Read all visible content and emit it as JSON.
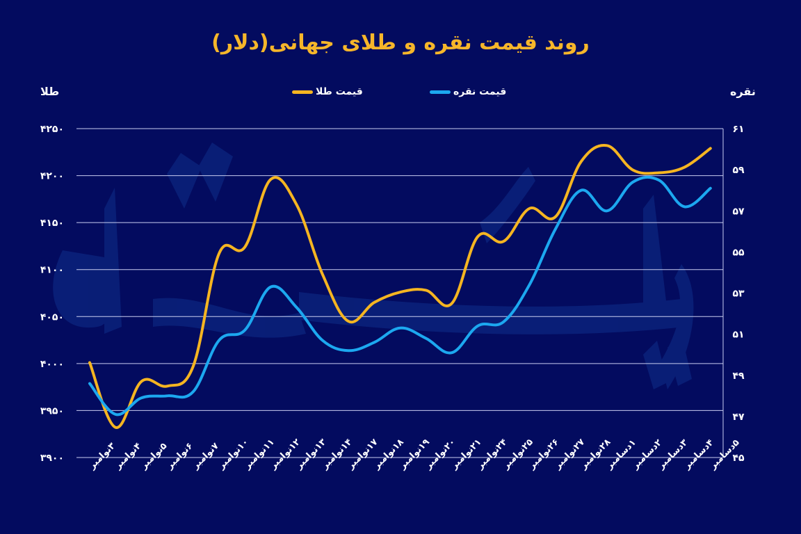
{
  "title": "روند قیمت نقره و طلای جهانی(دلار)",
  "colors": {
    "background": "#030b5f",
    "gold": "#f5b521",
    "silver": "#1ca8f0",
    "grid": "#c9cdf0",
    "watermark": "#0d2a86"
  },
  "legend": [
    {
      "label": "قیمت طلا",
      "color": "#f5b521"
    },
    {
      "label": "قیمت نقره",
      "color": "#1ca8f0"
    }
  ],
  "axes": {
    "left_title": "طلا",
    "right_title": "نقره"
  },
  "chart_data": {
    "type": "line",
    "title": "روند قیمت نقره و طلای جهانی(دلار)",
    "xlabel": "",
    "ylabel": "طلا",
    "ylabel_right": "نقره",
    "x": [
      "۳نوامبر",
      "۴نوامبر",
      "۵نوامبر",
      "۶نوامبر",
      "۷نوامبر",
      "۱۰نوامبر",
      "۱۱نوامبر",
      "۱۲نوامبر",
      "۱۳نوامبر",
      "۱۴نوامبر",
      "۱۷نوامبر",
      "۱۸نوامبر",
      "۱۹نوامبر",
      "۲۰نوامبر",
      "۲۱نوامبر",
      "۲۴نوامبر",
      "۲۵نوامبر",
      "۲۶نوامبر",
      "۲۷نوامبر",
      "۲۸نوامبر",
      "۱دسامبر",
      "۲دسامبر",
      "۳دسامبر",
      "۴دسامبر",
      "۵دسامبر"
    ],
    "series": [
      {
        "name": "قیمت طلا",
        "axis": "left",
        "color": "#f5b521",
        "values": [
          4001,
          3932,
          3981,
          3976,
          3997,
          4117,
          4124,
          4196,
          4169,
          4095,
          4045,
          4065,
          4076,
          4078,
          4064,
          4135,
          4130,
          4165,
          4156,
          4215,
          4232,
          4206,
          4203,
          4209,
          4229
        ]
      },
      {
        "name": "قیمت نقره",
        "axis": "right",
        "color": "#1ca8f0",
        "values": [
          48.6,
          47.1,
          47.9,
          48.0,
          48.2,
          50.7,
          51.2,
          53.3,
          52.3,
          50.7,
          50.2,
          50.6,
          51.3,
          50.8,
          50.1,
          51.4,
          51.6,
          53.4,
          56.1,
          58.0,
          57.0,
          58.4,
          58.5,
          57.2,
          58.1
        ]
      }
    ],
    "ylim": [
      3900,
      4250
    ],
    "ylim_right": [
      45,
      61
    ],
    "yticks": [
      "۴۲۵۰",
      "۴۲۰۰",
      "۴۱۵۰",
      "۴۱۰۰",
      "۴۰۵۰",
      "۴۰۰۰",
      "۳۹۵۰",
      "۳۹۰۰"
    ],
    "yticks_right": [
      "۶۱",
      "۵۹",
      "۵۷",
      "۵۵",
      "۵۳",
      "۵۱",
      "۴۹",
      "۴۷",
      "۴۵"
    ],
    "grid": true,
    "legend_position": "top"
  }
}
